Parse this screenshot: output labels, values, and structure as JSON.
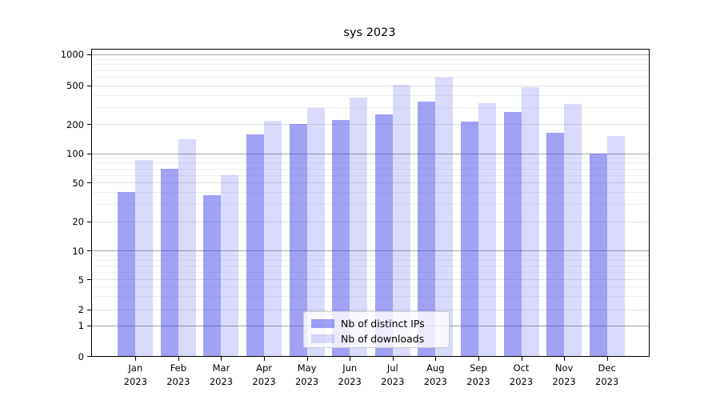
{
  "title": "sys 2023",
  "colors": {
    "ips_fill": "rgba(68,68,238,0.5)",
    "downloads_fill": "rgba(68,68,238,0.2)",
    "grid_minor": "#f0f0f0",
    "grid_major": "#e2e2e2",
    "grid_decade": "#a3a3a3",
    "spine": "#000000",
    "text": "#000000",
    "legend_bg": "rgba(255,255,255,0.8)",
    "legend_border": "#cccccc"
  },
  "legend": {
    "items": [
      {
        "label": "Nb of distinct IPs",
        "series": "ips"
      },
      {
        "label": "Nb of downloads",
        "series": "downloads"
      }
    ]
  },
  "axis": {
    "year": "2023",
    "months": [
      "Jan",
      "Feb",
      "Mar",
      "Apr",
      "May",
      "Jun",
      "Jul",
      "Aug",
      "Sep",
      "Oct",
      "Nov",
      "Dec"
    ],
    "yticks": [
      0,
      1,
      2,
      5,
      10,
      20,
      50,
      100,
      200,
      500,
      1000
    ]
  },
  "chart_data": {
    "type": "bar",
    "title": "sys 2023",
    "categories": [
      "Jan 2023",
      "Feb 2023",
      "Mar 2023",
      "Apr 2023",
      "May 2023",
      "Jun 2023",
      "Jul 2023",
      "Aug 2023",
      "Sep 2023",
      "Oct 2023",
      "Nov 2023",
      "Dec 2023"
    ],
    "series": [
      {
        "name": "Nb of distinct IPs",
        "values": [
          40,
          70,
          37,
          157,
          202,
          222,
          253,
          338,
          213,
          268,
          162,
          100
        ]
      },
      {
        "name": "Nb of downloads",
        "values": [
          85,
          140,
          60,
          218,
          295,
          372,
          505,
          590,
          326,
          478,
          325,
          152
        ]
      }
    ],
    "xlabel": "",
    "ylabel": "",
    "yscale": "symlog",
    "yticks": [
      0,
      1,
      2,
      5,
      10,
      20,
      50,
      100,
      200,
      500,
      1000
    ],
    "ylim": [
      0,
      1000
    ],
    "grid": true,
    "legend_position": "lower center"
  }
}
